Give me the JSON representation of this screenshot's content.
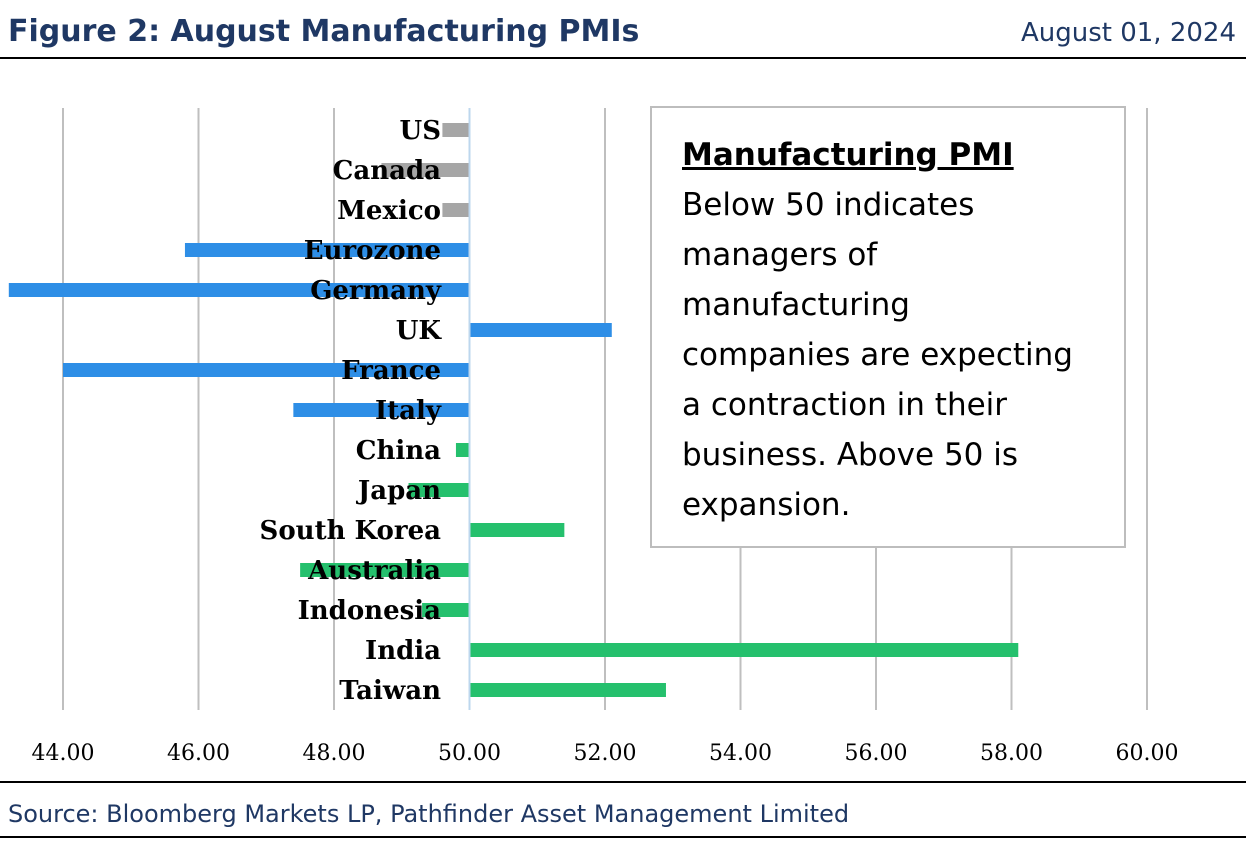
{
  "header": {
    "title": "Figure 2: August Manufacturing PMIs",
    "date": "August 01, 2024"
  },
  "footer": {
    "source": "Source: Bloomberg Markets LP, Pathfinder Asset Management Limited"
  },
  "note": {
    "title": "Manufacturing PMI",
    "line1": "Below 50 indicates",
    "line2": "managers of",
    "line3": "manufacturing",
    "line4": "companies are expecting",
    "line5": "a contraction in their",
    "line6": "business. Above 50 is",
    "line7": "expansion."
  },
  "colors": {
    "north_america": "#a6a6a6",
    "europe": "#2e8ee6",
    "asia_pacific": "#25c06d",
    "gridline": "#bfbfbf",
    "title_text": "#1f3864"
  },
  "chart_data": {
    "type": "bar",
    "orientation": "horizontal",
    "baseline": 50,
    "categories": [
      "US",
      "Canada",
      "Mexico",
      "Eurozone",
      "Germany",
      "UK",
      "France",
      "Italy",
      "China",
      "Japan",
      "South Korea",
      "Australia",
      "Indonesia",
      "India",
      "Taiwan"
    ],
    "values": [
      49.6,
      48.7,
      49.6,
      45.8,
      43.2,
      52.1,
      44.0,
      47.4,
      49.8,
      49.1,
      51.4,
      47.5,
      49.3,
      58.1,
      52.9
    ],
    "groups": [
      "north_america",
      "north_america",
      "north_america",
      "europe",
      "europe",
      "europe",
      "europe",
      "europe",
      "asia_pacific",
      "asia_pacific",
      "asia_pacific",
      "asia_pacific",
      "asia_pacific",
      "asia_pacific",
      "asia_pacific"
    ],
    "xlim": [
      44,
      60
    ],
    "ticks": [
      "44.00",
      "46.00",
      "48.00",
      "50.00",
      "52.00",
      "54.00",
      "56.00",
      "58.00",
      "60.00"
    ],
    "grid": true,
    "legend": "none",
    "title": "",
    "xlabel": "",
    "ylabel": ""
  }
}
